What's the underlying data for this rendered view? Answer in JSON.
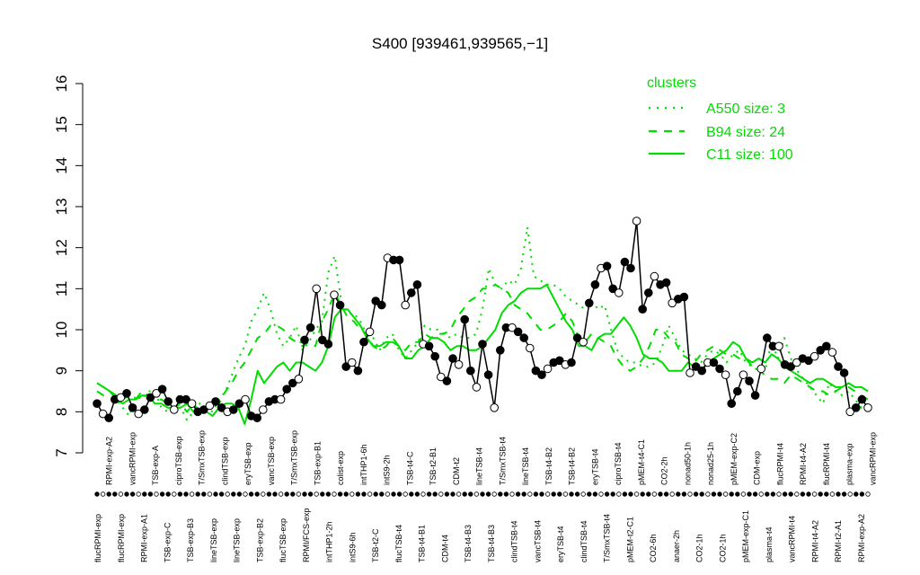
{
  "chart_data": {
    "type": "line",
    "title": "S400 [939461,939565,−1]",
    "xlabel": "",
    "ylabel": "",
    "ylim": [
      7,
      16
    ],
    "yticks": [
      7,
      8,
      9,
      10,
      11,
      12,
      13,
      14,
      15,
      16
    ],
    "grid": false,
    "legend": {
      "title": "clusters",
      "placement": "top-right",
      "color": "#00dd00",
      "entries": [
        {
          "label": "A550 size: 3",
          "style": "dotted"
        },
        {
          "label": "B94 size: 24",
          "style": "dashed"
        },
        {
          "label": "C11 size: 100",
          "style": "solid"
        }
      ]
    },
    "x_labels_bottom": [
      "flucRPMI-exp",
      "flucRPMI-exp",
      "RPMI-exp-A1",
      "TSB-exp-C",
      "TSB-exp-B3",
      "lineTSB-exp",
      "lineTSB-exp",
      "TSB-exp-B2",
      "flucTSB-exp",
      "RPMI/FCS-exp",
      "intTHP1-2h",
      "intS9-6h",
      "TSB-t2-C",
      "flucTSB-t4",
      "TSB-t4-B1",
      "CDM-t4",
      "TSB-t4-B3",
      "TSB-t4-B3",
      "clindTSB-t4",
      "vancTSB-t4",
      "eryTSB-t4",
      "clindTSB-t4",
      "T/SmxTSB-t4",
      "pMEM-t2-C1",
      "CO2-6h",
      "anaer-2h",
      "CO2-1h",
      "CO2-1h",
      "pMEM-exp-C1",
      "plasma-t4",
      "vancRPMI-t4",
      "RPMI-t4-A2",
      "RPMI-t2-A1",
      "RPMI-exp-A2"
    ],
    "x_labels_top": [
      "RPMI-exp-A2",
      "vancRPMI-exp",
      "TSB-exp-A",
      "ciproTSB-exp",
      "T/SmxTSB-exp",
      "clindTSB-exp",
      "eryTSB-exp",
      "vancTSB-exp",
      "T/SmxTSB-exp",
      "TSB-exp-B1",
      "colist-exp",
      "intTHP1-6h",
      "intS9-2h",
      "TSB-t4-C",
      "TSB-t2-B1",
      "CDM-t2",
      "lineTSB-t4",
      "T/SmxTSB-t4",
      "lineTSB-t4",
      "TSB-t4-B2",
      "TSB-t4-B2",
      "eryTSB-t4",
      "ciproTSB-t4",
      "pMEM-t4-C1",
      "CO2-2h",
      "nonad50-1h",
      "nonad25-1h",
      "pMEM-exp-C2",
      "CDM-exp",
      "flucRPMI-t4",
      "RPMI-t4-A2",
      "flucRPMI-t4",
      "plasma-exp",
      "vancRPMI-exp"
    ],
    "series": [
      {
        "style": "solid",
        "values": [
          8.7,
          8.6,
          8.5,
          8.3,
          8.2,
          8.3,
          8.3,
          8.4,
          8.4,
          8.2,
          8.2,
          8.1,
          8.1,
          8.1,
          8.2,
          8.0,
          8.0,
          8.0,
          7.9,
          8.1,
          8.2,
          8.2,
          8.1,
          7.7,
          8.3,
          9.0,
          8.7,
          8.9,
          9.1,
          9.2,
          9.0,
          9.2,
          9.2,
          9.1,
          9.0,
          9.2,
          9.6,
          10.3,
          10.5,
          10.5,
          10.3,
          10.1,
          9.8,
          9.6,
          9.6,
          9.7,
          9.7,
          9.6,
          9.3,
          9.3,
          9.5,
          9.6,
          9.8,
          9.8,
          9.7,
          9.5,
          9.6,
          9.6,
          9.5,
          9.5,
          9.6,
          9.8,
          10.0,
          10.4,
          10.6,
          10.7,
          10.9,
          11.0,
          11.0,
          11.0,
          11.1,
          10.8,
          10.5,
          10.2,
          10.0,
          9.6,
          9.6,
          9.5,
          9.8,
          9.9,
          9.9,
          10.1,
          10.3,
          10.1,
          9.8,
          9.4,
          9.3,
          9.3,
          9.2,
          9.0,
          9.0,
          9.0,
          9.2,
          9.1,
          9.0,
          9.2,
          9.3,
          9.4,
          9.5,
          9.7,
          9.6,
          9.3,
          9.2,
          9.3,
          9.2,
          9.4,
          9.3,
          9.1,
          9.0,
          8.9,
          8.8,
          8.7,
          8.8,
          8.8,
          8.7,
          8.6,
          8.6,
          8.7,
          8.6,
          8.6,
          8.5
        ]
      },
      {
        "style": "dashed",
        "values": [
          8.5,
          8.4,
          8.5,
          8.4,
          8.3,
          8.4,
          8.3,
          8.5,
          8.4,
          8.3,
          8.3,
          8.2,
          8.1,
          8.2,
          8.0,
          8.2,
          8.0,
          8.1,
          8.3,
          8.2,
          8.5,
          8.7,
          9.0,
          9.2,
          9.5,
          9.8,
          9.9,
          10.1,
          10.1,
          10.0,
          9.8,
          9.7,
          9.6,
          9.7,
          9.6,
          10.2,
          10.5,
          10.9,
          10.6,
          10.3,
          10.2,
          10.0,
          9.9,
          9.6,
          9.5,
          9.6,
          9.8,
          9.6,
          9.5,
          9.7,
          9.7,
          9.9,
          9.8,
          9.9,
          9.9,
          10.0,
          10.3,
          10.5,
          10.7,
          10.8,
          11.0,
          11.0,
          11.1,
          11.0,
          10.9,
          10.6,
          10.5,
          10.4,
          10.2,
          10.0,
          10.0,
          10.1,
          10.2,
          10.4,
          10.2,
          9.8,
          9.7,
          9.9,
          9.8,
          9.7,
          9.6,
          9.3,
          9.1,
          9.0,
          9.1,
          9.3,
          9.6,
          10.0,
          10.0,
          9.8,
          9.7,
          9.4,
          9.3,
          9.2,
          9.4,
          9.5,
          9.6,
          9.5,
          9.4,
          9.4,
          9.3,
          9.3,
          9.1,
          9.0,
          8.9,
          8.8,
          8.8,
          8.7,
          8.9,
          8.8,
          8.7,
          8.6,
          8.5,
          8.5,
          8.4,
          8.5,
          8.6,
          8.6,
          8.5,
          8.4,
          8.3
        ]
      },
      {
        "style": "dotted",
        "values": [
          8.7,
          8.6,
          8.5,
          8.3,
          8.1,
          7.9,
          8.4,
          8.3,
          8.5,
          8.5,
          8.1,
          8.0,
          8.1,
          8.1,
          7.8,
          8.0,
          8.2,
          8.1,
          8.0,
          8.3,
          8.5,
          8.9,
          9.3,
          9.6,
          10.2,
          10.5,
          10.9,
          10.5,
          9.9,
          9.6,
          9.8,
          10.1,
          9.5,
          9.7,
          10.0,
          10.2,
          11.4,
          11.8,
          10.7,
          10.4,
          10.4,
          10.2,
          9.9,
          9.8,
          9.5,
          9.8,
          9.9,
          9.5,
          9.3,
          9.5,
          9.7,
          10.1,
          10.0,
          10.0,
          9.9,
          9.8,
          9.9,
          9.8,
          9.8,
          9.9,
          10.5,
          11.5,
          11.1,
          11.0,
          11.2,
          11.1,
          11.5,
          12.5,
          11.3,
          11.2,
          11.1,
          11.1,
          11.0,
          10.8,
          10.7,
          10.6,
          10.5,
          10.7,
          10.5,
          10.6,
          10.0,
          9.5,
          9.3,
          9.2,
          9.2,
          9.1,
          9.1,
          9.2,
          9.6,
          10.1,
          9.8,
          9.5,
          9.4,
          9.3,
          9.2,
          9.4,
          9.5,
          9.4,
          9.2,
          9.4,
          9.5,
          9.2,
          9.1,
          9.0,
          9.0,
          9.7,
          9.3,
          9.8,
          9.3,
          9.0,
          8.8,
          8.6,
          8.4,
          8.2,
          8.7,
          8.5,
          8.4,
          8.5,
          8.3,
          8.1,
          8.2
        ]
      },
      {
        "style": "points",
        "values": [
          8.2,
          7.95,
          7.85,
          8.3,
          8.35,
          8.45,
          8.1,
          7.95,
          8.05,
          8.35,
          8.45,
          8.55,
          8.25,
          8.05,
          8.3,
          8.3,
          8.2,
          8.0,
          8.05,
          8.15,
          8.25,
          8.1,
          8.0,
          8.05,
          8.2,
          8.3,
          7.9,
          7.85,
          8.05,
          8.25,
          8.3,
          8.3,
          8.55,
          8.7,
          8.8,
          9.75,
          10.05,
          11.0,
          9.75,
          9.65,
          10.85,
          10.6,
          9.1,
          9.2,
          9.0,
          9.7,
          9.95,
          10.7,
          10.6,
          11.75,
          11.7,
          11.7,
          10.6,
          10.9,
          11.1,
          9.65,
          9.6,
          9.35,
          8.85,
          8.75,
          9.3,
          9.15,
          10.25,
          9.0,
          8.6,
          9.65,
          8.9,
          8.1,
          9.5,
          10.05,
          10.05,
          9.95,
          9.8,
          9.55,
          9.0,
          8.9,
          9.05,
          9.2,
          9.25,
          9.15,
          9.2,
          9.8,
          9.7,
          10.65,
          11.1,
          11.5,
          11.55,
          11.0,
          10.9,
          11.65,
          11.5,
          12.65,
          10.5,
          10.9,
          11.3,
          11.1,
          11.15,
          10.65,
          10.75,
          10.8,
          8.95,
          9.1,
          9.0,
          9.2,
          9.2,
          9.05,
          8.9,
          8.2,
          8.5,
          8.9,
          8.75,
          8.4,
          9.05,
          9.8,
          9.6,
          9.6,
          9.15,
          9.1,
          9.2,
          9.3,
          9.25,
          9.35,
          9.5,
          9.6,
          9.45,
          9.1,
          8.95,
          8.0,
          8.1,
          8.3,
          8.1
        ]
      }
    ]
  }
}
